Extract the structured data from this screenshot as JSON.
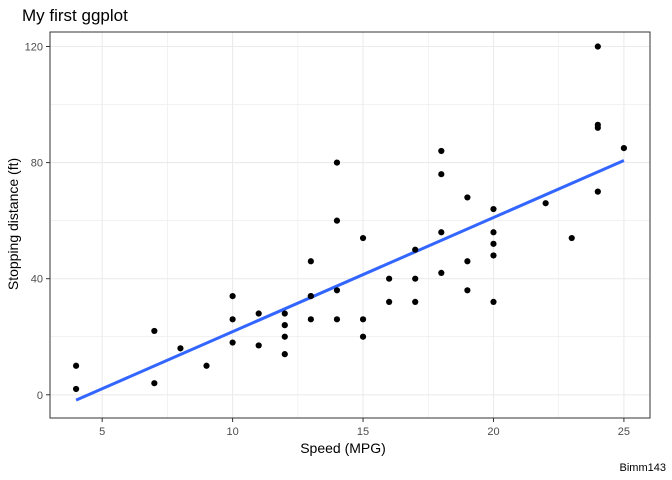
{
  "chart_data": {
    "type": "scatter",
    "title": "My first ggplot",
    "xlabel": "Speed (MPG)",
    "ylabel": "Stopping distance (ft)",
    "caption": "Bimm143",
    "xlim": [
      3,
      26
    ],
    "ylim": [
      -8,
      125
    ],
    "xticks": [
      5,
      10,
      15,
      20,
      25
    ],
    "yticks": [
      0,
      40,
      80,
      120
    ],
    "grid": true,
    "colors": {
      "points": "#000000",
      "line": "#3366FF",
      "grid": "#ebebeb",
      "panel_border": "#333333"
    },
    "points": [
      [
        4,
        2
      ],
      [
        4,
        10
      ],
      [
        7,
        4
      ],
      [
        7,
        22
      ],
      [
        8,
        16
      ],
      [
        9,
        10
      ],
      [
        10,
        18
      ],
      [
        10,
        26
      ],
      [
        10,
        34
      ],
      [
        11,
        17
      ],
      [
        11,
        28
      ],
      [
        12,
        14
      ],
      [
        12,
        20
      ],
      [
        12,
        24
      ],
      [
        12,
        28
      ],
      [
        13,
        26
      ],
      [
        13,
        34
      ],
      [
        13,
        34
      ],
      [
        13,
        46
      ],
      [
        14,
        26
      ],
      [
        14,
        36
      ],
      [
        14,
        60
      ],
      [
        14,
        80
      ],
      [
        15,
        20
      ],
      [
        15,
        26
      ],
      [
        15,
        54
      ],
      [
        16,
        32
      ],
      [
        16,
        40
      ],
      [
        17,
        32
      ],
      [
        17,
        40
      ],
      [
        17,
        50
      ],
      [
        18,
        42
      ],
      [
        18,
        56
      ],
      [
        18,
        76
      ],
      [
        18,
        84
      ],
      [
        19,
        36
      ],
      [
        19,
        46
      ],
      [
        19,
        68
      ],
      [
        20,
        32
      ],
      [
        20,
        48
      ],
      [
        20,
        52
      ],
      [
        20,
        56
      ],
      [
        20,
        64
      ],
      [
        22,
        66
      ],
      [
        23,
        54
      ],
      [
        24,
        70
      ],
      [
        24,
        92
      ],
      [
        24,
        93
      ],
      [
        24,
        120
      ],
      [
        25,
        85
      ]
    ],
    "trend_line": {
      "method": "lm",
      "x": [
        4,
        25
      ],
      "y": [
        -1.85,
        80.73
      ]
    }
  }
}
